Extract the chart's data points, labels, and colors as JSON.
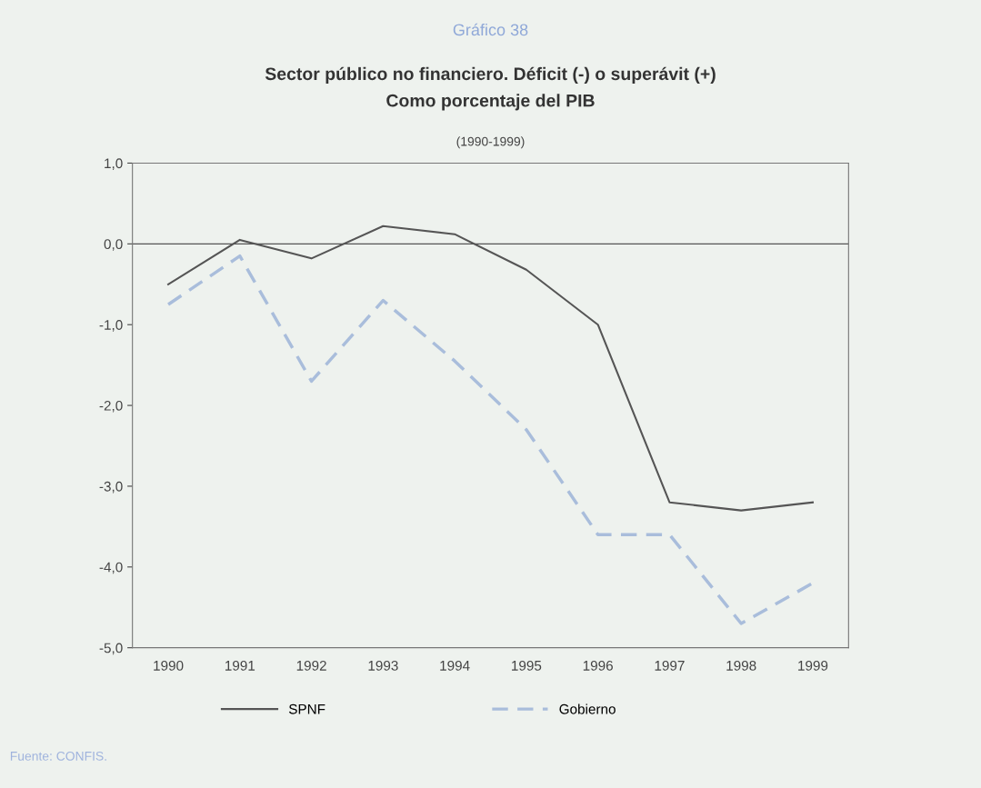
{
  "chart_data": {
    "type": "line",
    "title": "Gráfico 38",
    "subtitle": "Sector público no financiero. Déficit (-) o superávit (+)\nComo porcentaje del PIB",
    "annotations": [
      "(1990-1999)",
      "Fuente: CONFIS."
    ],
    "categories": [
      "1990",
      "1991",
      "1992",
      "1993",
      "1994",
      "1995",
      "1996",
      "1997",
      "1998",
      "1999"
    ],
    "series": [
      {
        "name": "SPNF",
        "color": "#555555",
        "line_style": "solid",
        "values": [
          -0.5,
          0.05,
          -0.18,
          0.22,
          0.12,
          -0.32,
          -1.0,
          -3.2,
          -3.3,
          -3.2
        ]
      },
      {
        "name": "Gobierno",
        "color": "#a9bddb",
        "line_style": "dashed",
        "values": [
          -0.75,
          -0.15,
          -1.7,
          -0.7,
          -1.45,
          -2.3,
          -3.6,
          -3.6,
          -4.7,
          -4.2
        ]
      }
    ],
    "ylim": [
      -5,
      1
    ],
    "yticks": [
      {
        "value": 1,
        "label": "1,0"
      },
      {
        "value": 0,
        "label": "0,0"
      },
      {
        "value": -1,
        "label": "-1,0"
      },
      {
        "value": -2,
        "label": "-2,0"
      },
      {
        "value": -3,
        "label": "-3,0"
      },
      {
        "value": -4,
        "label": "-4,0"
      },
      {
        "value": -5,
        "label": "-5,0"
      }
    ],
    "ref_lines": [
      {
        "axis": "y",
        "value": 0,
        "color": "#555555"
      }
    ],
    "grid": false,
    "legend": "bottom",
    "marker": "none"
  }
}
